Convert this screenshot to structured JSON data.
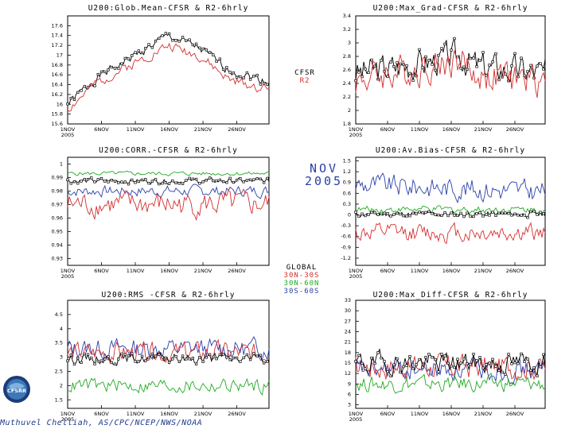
{
  "colors": {
    "cfsr": "#000000",
    "r2": "#d43030",
    "trop": "#d43030",
    "nh": "#22aa22",
    "sh": "#2c40a8"
  },
  "center_legend_top": {
    "line1": "CFSR",
    "line2": "R2"
  },
  "center_legend_bottom": {
    "title": "GLOBAL",
    "line1": "30N-30S",
    "line2": "30N-60N",
    "line3": "30S-60S"
  },
  "month_label": {
    "line1": "NOV",
    "line2": "2005"
  },
  "credit": "Muthuvel  Chelliah,  AS/CPC/NCEP/NWS/NOAA",
  "logo_text": "CFSRR",
  "x_ticks": {
    "labels": [
      "1NOV",
      "6NOV",
      "11NOV",
      "16NOV",
      "21NOV",
      "26NOV"
    ],
    "year": "2005"
  },
  "chart_data": [
    {
      "type": "line",
      "title": "U200:Glob.Mean-CFSR & R2-6hrly",
      "ylim": [
        15.6,
        17.8
      ],
      "yticks": [
        "15.6",
        "15.8",
        "16",
        "16.2",
        "16.4",
        "16.6",
        "16.8",
        "17",
        "17.2",
        "17.4",
        "17.6"
      ],
      "series": [
        {
          "name": "CFSR",
          "key": "cfsr",
          "gen": {
            "base": 16.55,
            "trend": [
              [
                0,
                -0.55
              ],
              [
                0.15,
                0
              ],
              [
                0.5,
                0.85
              ],
              [
                0.65,
                0.6
              ],
              [
                0.8,
                0.15
              ],
              [
                1,
                -0.1
              ]
            ],
            "amp": 0.09,
            "seed": 1
          },
          "markers": true
        },
        {
          "name": "R2",
          "key": "r2",
          "gen": {
            "base": 16.45,
            "trend": [
              [
                0,
                -0.55
              ],
              [
                0.15,
                0
              ],
              [
                0.5,
                0.75
              ],
              [
                0.65,
                0.55
              ],
              [
                0.8,
                0.05
              ],
              [
                1,
                -0.15
              ]
            ],
            "amp": 0.1,
            "seed": 2
          }
        }
      ]
    },
    {
      "type": "line",
      "title": "U200:Max_Grad-CFSR & R2-6hrly",
      "ylim": [
        1.8,
        3.4
      ],
      "yticks": [
        "1.8",
        "2",
        "2.2",
        "2.4",
        "2.6",
        "2.8",
        "3",
        "3.2",
        "3.4"
      ],
      "series": [
        {
          "name": "CFSR",
          "key": "cfsr",
          "gen": {
            "base": 2.55,
            "trend": [
              [
                0,
                0
              ],
              [
                0.55,
                0.25
              ],
              [
                0.65,
                0.1
              ],
              [
                1,
                0
              ]
            ],
            "amp": 0.22,
            "seed": 3
          },
          "markers": true
        },
        {
          "name": "R2",
          "key": "r2",
          "gen": {
            "base": 2.45,
            "trend": [
              [
                0,
                0
              ],
              [
                0.55,
                0.3
              ],
              [
                0.65,
                0.05
              ],
              [
                1,
                0
              ]
            ],
            "amp": 0.24,
            "seed": 4
          }
        }
      ]
    },
    {
      "type": "line",
      "title": "U200:CORR.-CFSR & R2-6hrly",
      "ylim": [
        0.925,
        1.005
      ],
      "yticks": [
        "0.93",
        "0.94",
        "0.95",
        "0.96",
        "0.97",
        "0.98",
        "0.99",
        "1"
      ],
      "series": [
        {
          "name": "30N-60N",
          "key": "nh",
          "gen": {
            "base": 0.993,
            "trend": [
              [
                0,
                0
              ],
              [
                1,
                0
              ]
            ],
            "amp": 0.0015,
            "seed": 5
          }
        },
        {
          "name": "GLOBAL",
          "key": "cfsr",
          "gen": {
            "base": 0.9875,
            "trend": [
              [
                0,
                0
              ],
              [
                1,
                0
              ]
            ],
            "amp": 0.002,
            "seed": 6
          },
          "markers": true
        },
        {
          "name": "30S-60S",
          "key": "sh",
          "gen": {
            "base": 0.98,
            "trend": [
              [
                0,
                0
              ],
              [
                1,
                0
              ]
            ],
            "amp": 0.004,
            "seed": 7
          }
        },
        {
          "name": "30N-30S",
          "key": "trop",
          "gen": {
            "base": 0.97,
            "trend": [
              [
                0,
                0
              ],
              [
                1,
                0
              ]
            ],
            "amp": 0.009,
            "seed": 8
          }
        }
      ]
    },
    {
      "type": "line",
      "title": "U200:Av.Bias-CFSR & R2-6hrly",
      "ylim": [
        -1.4,
        1.6
      ],
      "yticks": [
        "-1.2",
        "-0.9",
        "-0.6",
        "-0.3",
        "0",
        "0.3",
        "0.6",
        "0.9",
        "1.2",
        "1.5"
      ],
      "series": [
        {
          "name": "30S-60S",
          "key": "sh",
          "gen": {
            "base": 0.65,
            "trend": [
              [
                0,
                0.2
              ],
              [
                1,
                0
              ]
            ],
            "amp": 0.3,
            "seed": 9
          }
        },
        {
          "name": "30N-60N",
          "key": "nh",
          "gen": {
            "base": 0.15,
            "trend": [
              [
                0,
                0
              ],
              [
                1,
                0
              ]
            ],
            "amp": 0.1,
            "seed": 10
          }
        },
        {
          "name": "GLOBAL",
          "key": "cfsr",
          "gen": {
            "base": 0.02,
            "trend": [
              [
                0,
                0
              ],
              [
                1,
                0
              ]
            ],
            "amp": 0.08,
            "seed": 11
          },
          "markers": true
        },
        {
          "name": "30N-30S",
          "key": "trop",
          "gen": {
            "base": -0.5,
            "trend": [
              [
                0,
                0
              ],
              [
                1,
                0
              ]
            ],
            "amp": 0.25,
            "seed": 12
          }
        }
      ]
    },
    {
      "type": "line",
      "title": "U200:RMS -CFSR & R2-6hrly",
      "ylim": [
        1.2,
        5.0
      ],
      "yticks": [
        "1.5",
        "2",
        "2.5",
        "3",
        "3.5",
        "4",
        "4.5"
      ],
      "series": [
        {
          "name": "30S-60S",
          "key": "sh",
          "gen": {
            "base": 3.3,
            "trend": [
              [
                0,
                0
              ],
              [
                1,
                0
              ]
            ],
            "amp": 0.35,
            "seed": 13
          }
        },
        {
          "name": "30N-30S",
          "key": "trop",
          "gen": {
            "base": 3.15,
            "trend": [
              [
                0,
                0
              ],
              [
                1,
                0
              ]
            ],
            "amp": 0.35,
            "seed": 14
          }
        },
        {
          "name": "GLOBAL",
          "key": "cfsr",
          "gen": {
            "base": 2.95,
            "trend": [
              [
                0,
                0
              ],
              [
                1,
                0
              ]
            ],
            "amp": 0.18,
            "seed": 15
          },
          "markers": true
        },
        {
          "name": "30N-60N",
          "key": "nh",
          "gen": {
            "base": 2.0,
            "trend": [
              [
                0,
                0
              ],
              [
                1,
                0
              ]
            ],
            "amp": 0.25,
            "seed": 16
          }
        }
      ]
    },
    {
      "type": "line",
      "title": "U200:Max_Diff-CFSR & R2-6hrly",
      "ylim": [
        2,
        33
      ],
      "yticks": [
        "3",
        "6",
        "9",
        "12",
        "15",
        "18",
        "21",
        "24",
        "27",
        "30",
        "33"
      ],
      "series": [
        {
          "name": "30N-30S",
          "key": "trop",
          "gen": {
            "base": 14,
            "trend": [
              [
                0,
                0
              ],
              [
                1,
                0
              ]
            ],
            "amp": 3.5,
            "seed": 17
          }
        },
        {
          "name": "30S-60S",
          "key": "sh",
          "gen": {
            "base": 13,
            "trend": [
              [
                0,
                0
              ],
              [
                1,
                0
              ]
            ],
            "amp": 3,
            "seed": 18
          }
        },
        {
          "name": "GLOBAL",
          "key": "cfsr",
          "gen": {
            "base": 15,
            "trend": [
              [
                0,
                0
              ],
              [
                1,
                0
              ]
            ],
            "amp": 3,
            "seed": 19
          },
          "markers": true
        },
        {
          "name": "30N-60N",
          "key": "nh",
          "gen": {
            "base": 9,
            "trend": [
              [
                0,
                0
              ],
              [
                1,
                0
              ]
            ],
            "amp": 2.2,
            "seed": 20
          }
        }
      ]
    }
  ]
}
